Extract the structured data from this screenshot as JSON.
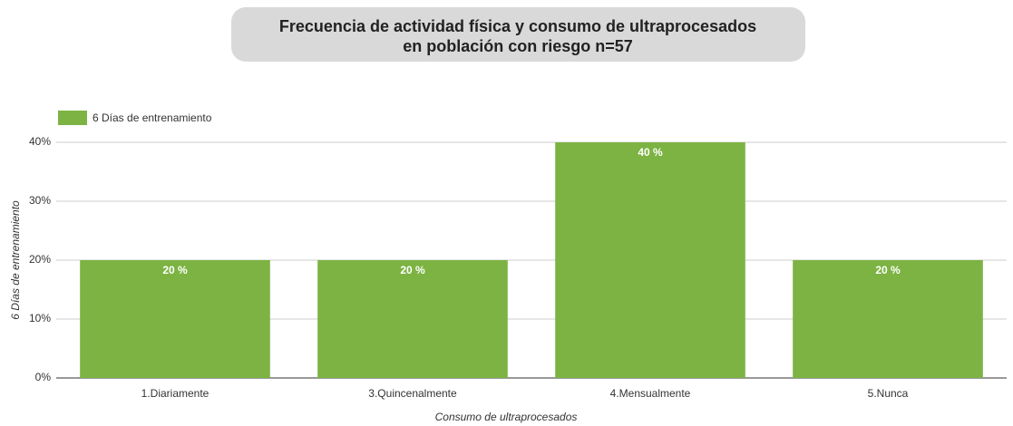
{
  "chart_data": {
    "type": "bar",
    "title": [
      "Frecuencia de actividad física y consumo de ultraprocesados",
      "en población con riesgo n=57"
    ],
    "categories": [
      "1.Diariamente",
      "3.Quincenalmente",
      "4.Mensualmente",
      "5.Nunca"
    ],
    "series": [
      {
        "name": "6 Días de entrenamiento",
        "color": "#7cb342",
        "values": [
          20,
          20,
          40,
          20
        ],
        "value_labels": [
          "20 %",
          "20 %",
          "40 %",
          "20 %"
        ]
      }
    ],
    "x_label": "Consumo de ultraprocesados",
    "y_label": "6 Días de entrenamiento",
    "ylim": [
      0,
      40
    ],
    "yticks": [
      {
        "value": 0,
        "label": "0%"
      },
      {
        "value": 10,
        "label": "10%"
      },
      {
        "value": 20,
        "label": "20%"
      },
      {
        "value": 30,
        "label": "30%"
      },
      {
        "value": 40,
        "label": "40%"
      }
    ],
    "grid": true,
    "legend": "top-left"
  }
}
